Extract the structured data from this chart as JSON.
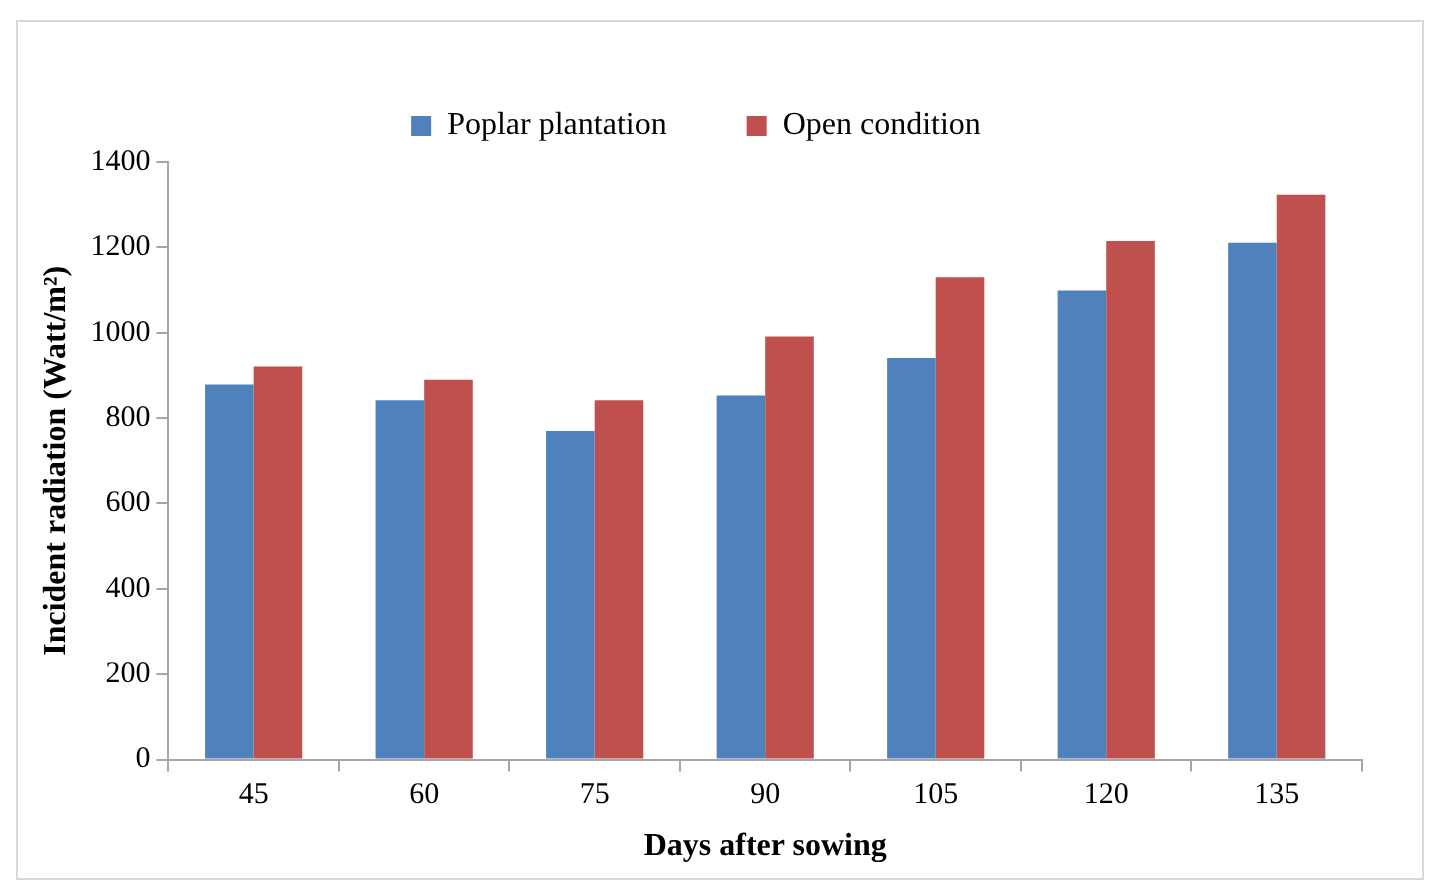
{
  "chart_data": {
    "type": "bar",
    "xlabel": "Days after sowing",
    "ylabel": "Incident radiation (Watt/m²)",
    "categories": [
      "45",
      "60",
      "75",
      "90",
      "105",
      "120",
      "135"
    ],
    "series": [
      {
        "name": "Poplar plantation",
        "color": "#4f81bd",
        "values": [
          879,
          842,
          770,
          853,
          941,
          1099,
          1211
        ]
      },
      {
        "name": "Open condition",
        "color": "#c0504d",
        "values": [
          921,
          890,
          842,
          991,
          1130,
          1215,
          1323
        ]
      }
    ],
    "ylim": [
      0,
      1400
    ],
    "yticks": [
      0,
      200,
      400,
      600,
      800,
      1000,
      1200,
      1400
    ],
    "grid": false,
    "legend": "top"
  }
}
